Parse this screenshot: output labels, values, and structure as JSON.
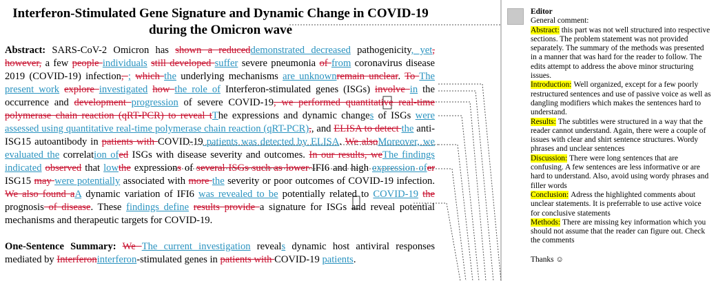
{
  "title": {
    "lines": [
      "Interferon-Stimulated Gene Signature and Dynamic Change in COVID-19",
      "during the Omicron wave"
    ]
  },
  "abstract": {
    "runs": [
      {
        "style": "bold",
        "text": "Abstract:"
      },
      {
        "style": "normal",
        "text": " SARS-CoV-2 Omicron has "
      },
      {
        "style": "del",
        "text": "shown a reduced"
      },
      {
        "style": "ins",
        "text": "demonstrated decreased"
      },
      {
        "style": "normal",
        "text": " pathogenicity"
      },
      {
        "style": "ins",
        "text": ", yet"
      },
      {
        "style": "del",
        "text": ","
      },
      {
        "style": "normal",
        "text": " "
      },
      {
        "style": "del",
        "text": "however,"
      },
      {
        "style": "normal",
        "text": " a few "
      },
      {
        "style": "del",
        "text": "people "
      },
      {
        "style": "ins",
        "text": "individuals"
      },
      {
        "style": "normal",
        "text": " "
      },
      {
        "style": "del",
        "text": "still developed "
      },
      {
        "style": "ins",
        "text": "suffer"
      },
      {
        "style": "normal",
        "text": " severe pneumonia "
      },
      {
        "style": "del",
        "text": "of "
      },
      {
        "style": "ins",
        "text": "from"
      },
      {
        "style": "normal",
        "text": " coronavirus disease 2019 (COVID-19) infection"
      },
      {
        "style": "del",
        "text": ", "
      },
      {
        "style": "ins",
        "text": ";"
      },
      {
        "style": "normal",
        "text": " "
      },
      {
        "style": "del",
        "text": "which "
      },
      {
        "style": "ins",
        "text": "the"
      },
      {
        "style": "normal",
        "text": " underlying mechanisms "
      },
      {
        "style": "ins",
        "text": "are unknown"
      },
      {
        "style": "del",
        "text": "remain unclear"
      },
      {
        "style": "normal",
        "text": ". "
      },
      {
        "style": "del",
        "text": "To "
      },
      {
        "style": "ins",
        "text": "The present work"
      },
      {
        "style": "normal",
        "text": " "
      },
      {
        "style": "del",
        "text": "explore "
      },
      {
        "style": "ins",
        "text": "investigated"
      },
      {
        "style": "normal",
        "text": " "
      },
      {
        "style": "del",
        "text": "how "
      },
      {
        "style": "ins",
        "text": "the role of"
      },
      {
        "style": "normal",
        "text": " Interferon-stimulated genes (ISGs) "
      },
      {
        "style": "del",
        "text": "involve "
      },
      {
        "style": "ins",
        "text": "in"
      },
      {
        "style": "normal",
        "text": " the occurrence and "
      },
      {
        "style": "del",
        "text": "development "
      },
      {
        "style": "ins",
        "text": "progression"
      },
      {
        "style": "normal",
        "text": " of severe COVID-19"
      },
      {
        "style": "del",
        "text": ", we performed quantitative real-time polymerase chain reaction (qRT-PCR) to reveal t"
      },
      {
        "style": "ins",
        "text": "T"
      },
      {
        "style": "normal",
        "text": "he expressions and dynamic change"
      },
      {
        "style": "ins",
        "text": "s"
      },
      {
        "style": "normal",
        "text": " of ISGs "
      },
      {
        "style": "ins",
        "text": "were assessed using quantitative real-time polymerase chain reaction (qRT-PCR)"
      },
      {
        "style": "del",
        "text": ","
      },
      {
        "style": "normal",
        "text": ", and "
      },
      {
        "style": "del",
        "text": "ELISA to detect "
      },
      {
        "style": "ins",
        "text": "the"
      },
      {
        "style": "normal",
        "text": " anti-ISG15 autoantibody in "
      },
      {
        "style": "del",
        "text": "patients with "
      },
      {
        "style": "normal",
        "text": "COVID-19"
      },
      {
        "style": "ins",
        "text": " patients was detected by ELISA"
      },
      {
        "style": "normal",
        "text": ". "
      },
      {
        "style": "del",
        "text": "We also"
      },
      {
        "style": "ins",
        "text": "Moreover, we evaluated the"
      },
      {
        "style": "normal",
        "text": " correlat"
      },
      {
        "style": "ins",
        "text": "ion of"
      },
      {
        "style": "del",
        "text": "ed"
      },
      {
        "style": "normal",
        "text": " ISGs with disease severity and outcomes. "
      },
      {
        "style": "del",
        "text": "In our results, we"
      },
      {
        "style": "ins",
        "text": "The findings indicated"
      },
      {
        "style": "normal",
        "text": " "
      },
      {
        "style": "del",
        "text": "observed"
      },
      {
        "style": "normal",
        "text": " that "
      },
      {
        "style": "ins",
        "text": "low"
      },
      {
        "style": "del",
        "text": "the"
      },
      {
        "style": "normal",
        "text": " expression"
      },
      {
        "style": "del",
        "text": "s"
      },
      {
        "style": "normal",
        "text": " of "
      },
      {
        "style": "del",
        "text": "several ISGs such as lower "
      },
      {
        "style": "normal",
        "text": "IFI6 and high "
      },
      {
        "style": "ins",
        "text": "expression of"
      },
      {
        "style": "del",
        "text": "er"
      },
      {
        "style": "normal",
        "text": " ISG15 "
      },
      {
        "style": "del",
        "text": "may "
      },
      {
        "style": "ins",
        "text": "were potentially"
      },
      {
        "style": "normal",
        "text": " associated with "
      },
      {
        "style": "del",
        "text": "more "
      },
      {
        "style": "ins",
        "text": "the"
      },
      {
        "style": "normal",
        "text": " severity or poor outcomes of COVID-19 infection. "
      },
      {
        "style": "del",
        "text": "We also found a"
      },
      {
        "style": "ins",
        "text": "A"
      },
      {
        "style": "normal",
        "text": " dynamic variation of IFI6 "
      },
      {
        "style": "ins",
        "text": "was revealed to be"
      },
      {
        "style": "normal",
        "text": " potentially related to "
      },
      {
        "style": "ins",
        "text": "COVID-19"
      },
      {
        "style": "normal",
        "text": " "
      },
      {
        "style": "del",
        "text": "the"
      },
      {
        "style": "normal",
        "text": " prognosis"
      },
      {
        "style": "del",
        "text": " of disease"
      },
      {
        "style": "normal",
        "text": ". These "
      },
      {
        "style": "ins",
        "text": "findings define"
      },
      {
        "style": "normal",
        "text": " "
      },
      {
        "style": "del",
        "text": "results provide "
      },
      {
        "style": "normal",
        "text": "a signature for ISGs and reveal potential mechanisms and therapeutic targets for COVID-19."
      }
    ]
  },
  "summary": {
    "runs": [
      {
        "style": "bold",
        "text": "One-Sentence Summary:"
      },
      {
        "style": "normal",
        "text": " "
      },
      {
        "style": "del",
        "text": "We "
      },
      {
        "style": "ins",
        "text": "The current investigation"
      },
      {
        "style": "normal",
        "text": " reveal"
      },
      {
        "style": "ins",
        "text": "s"
      },
      {
        "style": "normal",
        "text": " dynamic host antiviral responses mediated by "
      },
      {
        "style": "del",
        "text": "Interferon"
      },
      {
        "style": "ins",
        "text": "interferon"
      },
      {
        "style": "normal",
        "text": "-stimulated genes in "
      },
      {
        "style": "del",
        "text": "patients with "
      },
      {
        "style": "normal",
        "text": "COVID-19 "
      },
      {
        "style": "ins",
        "text": "patients"
      },
      {
        "style": "normal",
        "text": "."
      }
    ]
  },
  "comments": {
    "author": "Editor",
    "intro": "General comment:",
    "items": [
      {
        "label": "Abstract:",
        "text": "this part was not well structured into respective sections. The problem statement was not provided separately. The summary of the methods was presented in a manner that was hard for the reader to follow. The edits attempt to address the above minor structuring issues."
      },
      {
        "label": "Introduction:",
        "text": "Well organized, except for a few poorly restructured sentences and use of passive voice as well as dangling modifiers which makes the sentences hard to understand."
      },
      {
        "label": "Results:",
        "text": "The subtitles were structured in a way that the reader cannot understand. Again, there were a couple of issues with clear and shirt sentence structures. Wordy phrases and unclear sentences"
      },
      {
        "label": "Discussion:",
        "text": "There were long sentences that are confusing. A few sentences are less informative or are hard to understand. Also, avoid using wordy phrases and filler words"
      },
      {
        "label": "Conclusion:",
        "text": "Adress the highlighted comments about unclear statements. It is preferrable to use active voice for conclusive statements"
      },
      {
        "label": "Methods:",
        "text": "There are missing key information which you should not assume that the reader can figure out. Check the comments"
      }
    ],
    "closing": "Thanks ☺"
  }
}
